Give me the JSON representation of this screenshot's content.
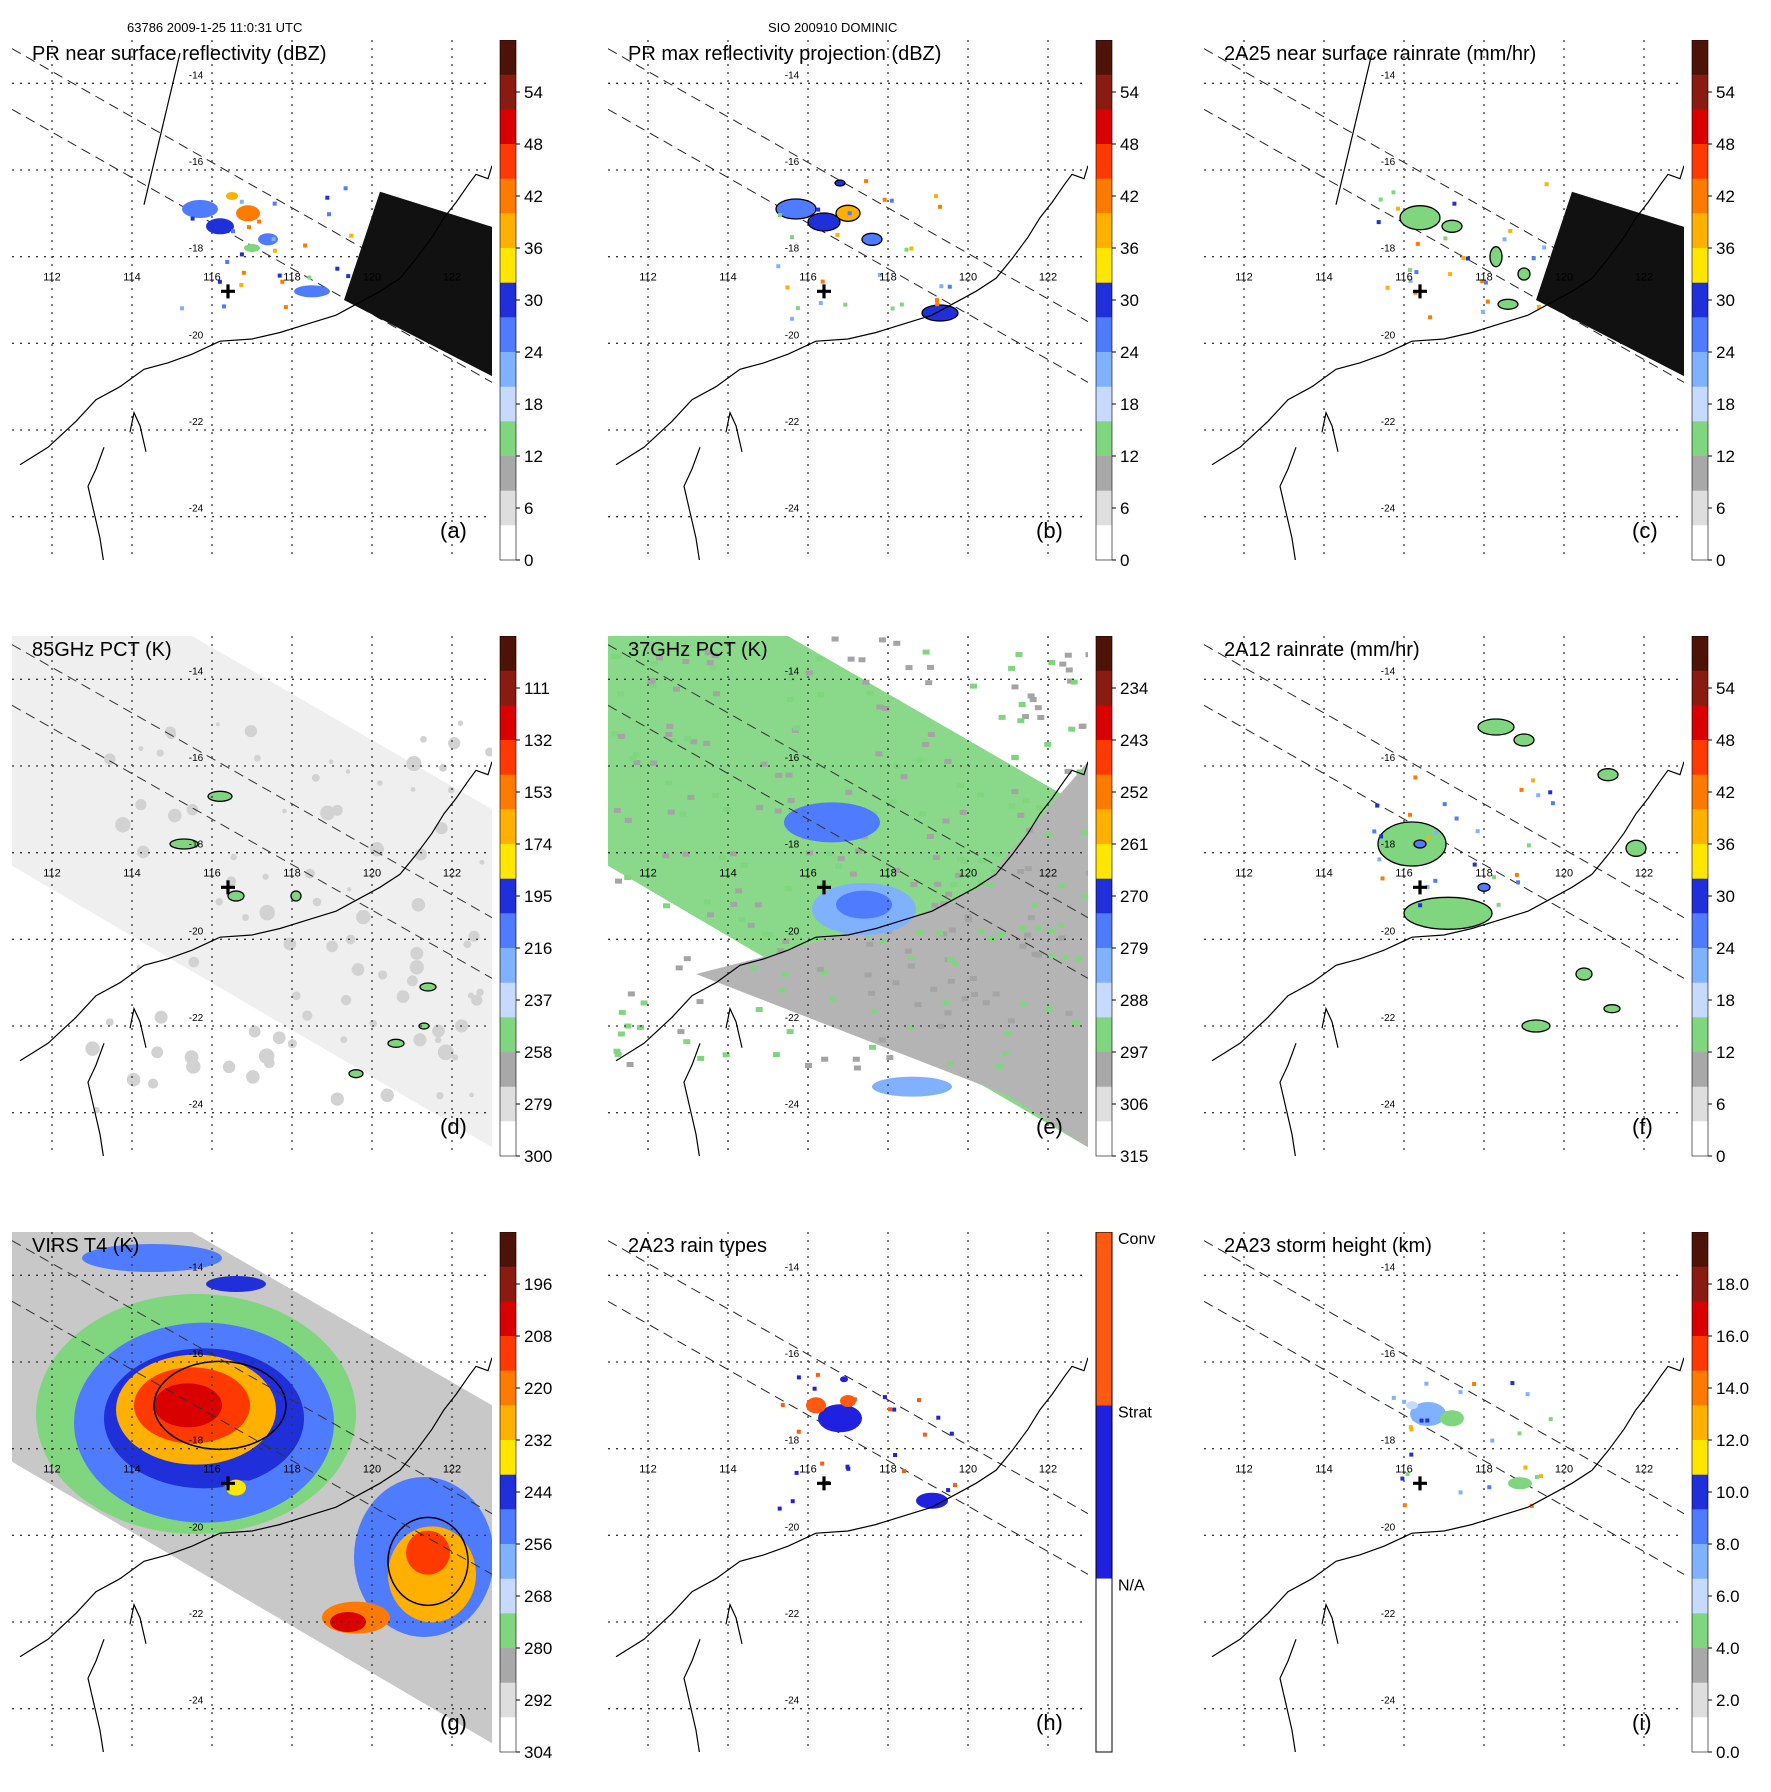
{
  "header": {
    "orbit_time": "63786 2009-1-25 11:0:31 UTC",
    "storm": "SIO 200910 DOMINIC"
  },
  "map": {
    "lon_labels": [
      "112",
      "114",
      "116",
      "118",
      "120",
      "122"
    ],
    "lat_labels": [
      "-14",
      "-16",
      "-18",
      "-20",
      "-22",
      "-24"
    ],
    "lon_range": [
      111,
      123
    ],
    "lat_range": [
      -13,
      -25
    ]
  },
  "panels": [
    {
      "id": "a",
      "title": "PR near surface reflectivity (dBZ)",
      "letter": "(a)",
      "ticks": [
        "54",
        "48",
        "42",
        "36",
        "30",
        "24",
        "18",
        "12",
        "6",
        "0"
      ]
    },
    {
      "id": "b",
      "title": "PR max reflectivity projection (dBZ)",
      "letter": "(b)",
      "ticks": [
        "54",
        "48",
        "42",
        "36",
        "30",
        "24",
        "18",
        "12",
        "6",
        "0"
      ]
    },
    {
      "id": "c",
      "title": "2A25 near surface rainrate (mm/hr)",
      "letter": "(c)",
      "ticks": [
        "54",
        "48",
        "42",
        "36",
        "30",
        "24",
        "18",
        "12",
        "6",
        "0"
      ]
    },
    {
      "id": "d",
      "title": "85GHz PCT (K)",
      "letter": "(d)",
      "ticks": [
        "111",
        "132",
        "153",
        "174",
        "195",
        "216",
        "237",
        "258",
        "279",
        "300"
      ]
    },
    {
      "id": "e",
      "title": "37GHz PCT (K)",
      "letter": "(e)",
      "ticks": [
        "234",
        "243",
        "252",
        "261",
        "270",
        "279",
        "288",
        "297",
        "306",
        "315"
      ]
    },
    {
      "id": "f",
      "title": "2A12 rainrate (mm/hr)",
      "letter": "(f)",
      "ticks": [
        "54",
        "48",
        "42",
        "36",
        "30",
        "24",
        "18",
        "12",
        "6",
        "0"
      ]
    },
    {
      "id": "g",
      "title": "VIRS T4 (K)",
      "letter": "(g)",
      "ticks": [
        "196",
        "208",
        "220",
        "232",
        "244",
        "256",
        "268",
        "280",
        "292",
        "304"
      ]
    },
    {
      "id": "h",
      "title": "2A23 rain types",
      "letter": "(h)",
      "ticks": [
        "Conv",
        "Strat",
        "N/A"
      ]
    },
    {
      "id": "i",
      "title": "2A23 storm height (km)",
      "letter": "(i)",
      "ticks": [
        "18.0",
        "16.0",
        "14.0",
        "12.0",
        "10.0",
        "8.0",
        "6.0",
        "4.0",
        "2.0",
        "0.0"
      ]
    }
  ],
  "colors": {
    "scale": [
      "#ffffff",
      "#dedede",
      "#a8a8a8",
      "#7fd67f",
      "#c6daff",
      "#7fb1ff",
      "#4f7bff",
      "#1f2fd9",
      "#ffe600",
      "#ffb000",
      "#ff7a00",
      "#ff3a00",
      "#d80000",
      "#8a1b10",
      "#4d1208"
    ],
    "rain_types": [
      "#ffffff",
      "#2020e0",
      "#ff5a10"
    ]
  }
}
